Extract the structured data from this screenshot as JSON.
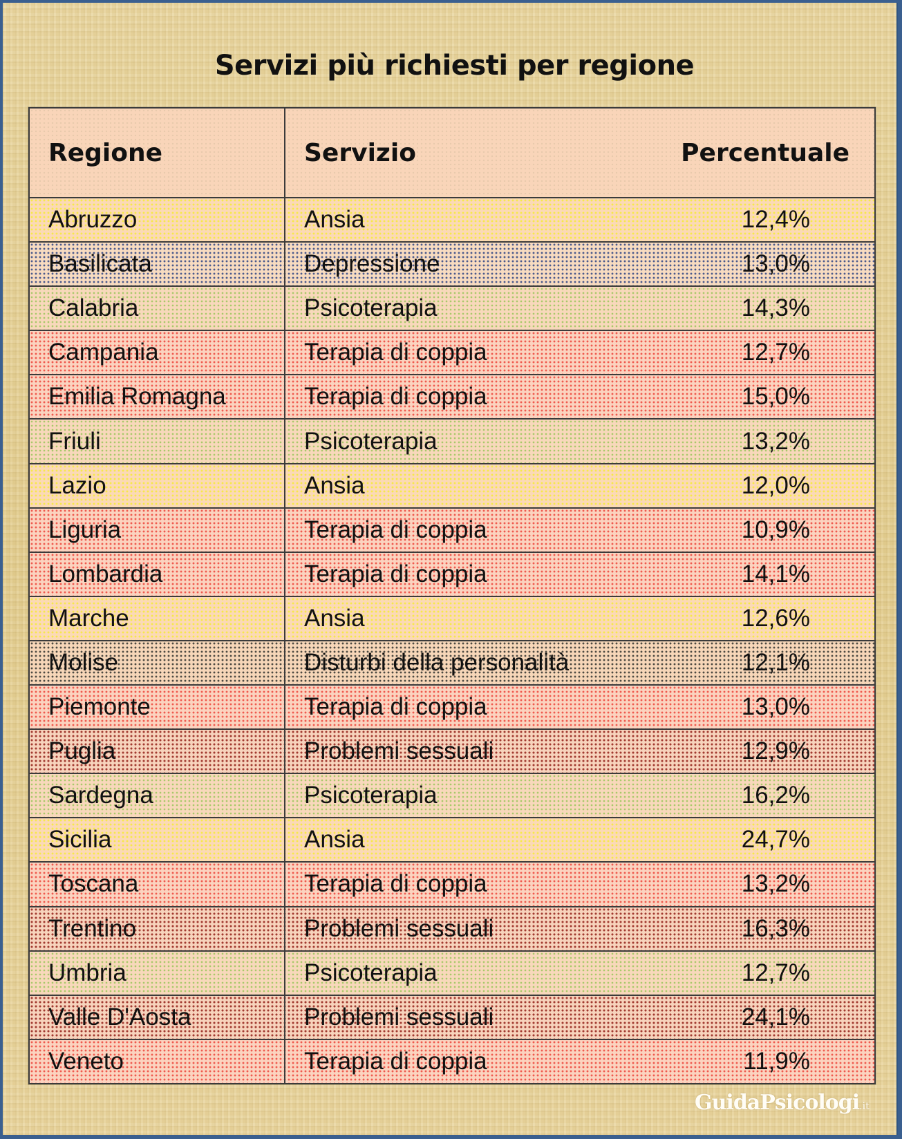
{
  "title": "Servizi più richiesti per regione",
  "table": {
    "headers": {
      "regione": "Regione",
      "servizio": "Servizio",
      "percentuale": "Percentuale"
    },
    "rows": [
      {
        "regione": "Abruzzo",
        "servizio": "Ansia",
        "percentuale": "12,4%",
        "pattern": "ansia"
      },
      {
        "regione": "Basilicata",
        "servizio": "Depressione",
        "percentuale": "13,0%",
        "pattern": "depressione"
      },
      {
        "regione": "Calabria",
        "servizio": "Psicoterapia",
        "percentuale": "14,3%",
        "pattern": "psicoterapia"
      },
      {
        "regione": "Campania",
        "servizio": "Terapia di coppia",
        "percentuale": "12,7%",
        "pattern": "coppia"
      },
      {
        "regione": "Emilia Romagna",
        "servizio": "Terapia di coppia",
        "percentuale": "15,0%",
        "pattern": "coppia"
      },
      {
        "regione": "Friuli",
        "servizio": "Psicoterapia",
        "percentuale": "13,2%",
        "pattern": "psicoterapia"
      },
      {
        "regione": "Lazio",
        "servizio": "Ansia",
        "percentuale": "12,0%",
        "pattern": "ansia"
      },
      {
        "regione": "Liguria",
        "servizio": "Terapia di coppia",
        "percentuale": "10,9%",
        "pattern": "coppia"
      },
      {
        "regione": "Lombardia",
        "servizio": "Terapia di coppia",
        "percentuale": "14,1%",
        "pattern": "coppia"
      },
      {
        "regione": "Marche",
        "servizio": "Ansia",
        "percentuale": "12,6%",
        "pattern": "ansia"
      },
      {
        "regione": "Molise",
        "servizio": "Disturbi della personalità",
        "percentuale": "12,1%",
        "pattern": "disturbi"
      },
      {
        "regione": "Piemonte",
        "servizio": "Terapia di coppia",
        "percentuale": "13,0%",
        "pattern": "coppia"
      },
      {
        "regione": "Puglia",
        "servizio": "Problemi sessuali",
        "percentuale": "12,9%",
        "pattern": "sessuali"
      },
      {
        "regione": "Sardegna",
        "servizio": "Psicoterapia",
        "percentuale": "16,2%",
        "pattern": "psicoterapia"
      },
      {
        "regione": "Sicilia",
        "servizio": "Ansia",
        "percentuale": "24,7%",
        "pattern": "ansia"
      },
      {
        "regione": "Toscana",
        "servizio": "Terapia di coppia",
        "percentuale": "13,2%",
        "pattern": "coppia"
      },
      {
        "regione": "Trentino",
        "servizio": "Problemi sessuali",
        "percentuale": "16,3%",
        "pattern": "sessuali"
      },
      {
        "regione": "Umbria",
        "servizio": "Psicoterapia",
        "percentuale": "12,7%",
        "pattern": "psicoterapia"
      },
      {
        "regione": "Valle D'Aosta",
        "servizio": "Problemi sessuali",
        "percentuale": "24,1%",
        "pattern": "sessuali"
      },
      {
        "regione": "Veneto",
        "servizio": "Terapia di coppia",
        "percentuale": "11,9%",
        "pattern": "coppia"
      }
    ]
  },
  "logo": {
    "name": "GuidaPsicologi",
    "tld": ".it"
  },
  "colors": {
    "frame_border": "#3a5f8f",
    "header_bg": "#f9d5b9",
    "ansia_dots": "#f6e94a",
    "depressione_dots": "#4b5a8c",
    "psicoterapia_dots": "#a9c96a",
    "coppia_dots": "#ef5a4e",
    "disturbi_dots": "#4d4a42",
    "sessuali_dots": "#a23a30"
  }
}
